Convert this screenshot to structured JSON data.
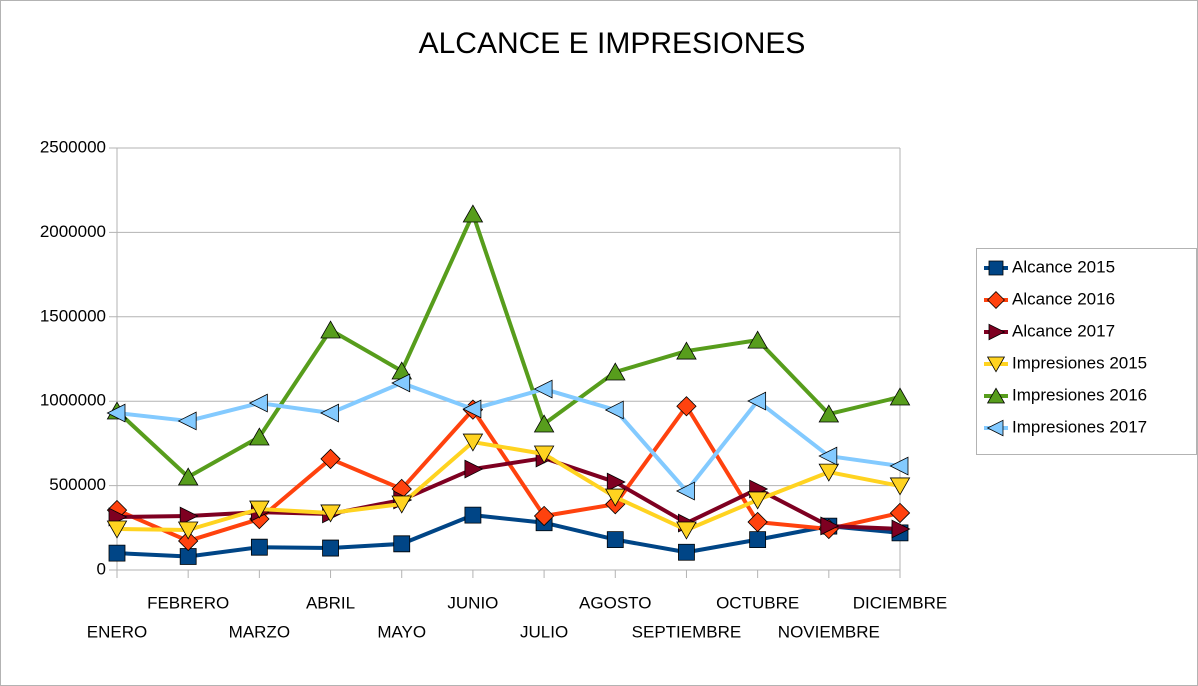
{
  "chart_data": {
    "type": "line",
    "title": "ALCANCE E IMPRESIONES",
    "categories": [
      "ENERO",
      "FEBRERO",
      "MARZO",
      "ABRIL",
      "MAYO",
      "JUNIO",
      "JULIO",
      "AGOSTO",
      "SEPTIEMBRE",
      "OCTUBRE",
      "NOVIEMBRE",
      "DICIEMBRE"
    ],
    "ylim": [
      0,
      2500000
    ],
    "yticks": [
      0,
      500000,
      1000000,
      1500000,
      2000000,
      2500000
    ],
    "grid": true,
    "legend": "right",
    "series": [
      {
        "name": "Alcance 2015",
        "color": "#004586",
        "marker": "square",
        "values": [
          100000,
          80000,
          135000,
          130000,
          155000,
          325000,
          280000,
          180000,
          105000,
          180000,
          260000,
          220000
        ]
      },
      {
        "name": "Alcance 2016",
        "color": "#ff420e",
        "marker": "diamond",
        "values": [
          355000,
          172000,
          302000,
          658000,
          480000,
          950000,
          320000,
          390000,
          970000,
          284000,
          243000,
          338000
        ]
      },
      {
        "name": "Alcance 2017",
        "color": "#7e0021",
        "marker": "triangle-right",
        "values": [
          314000,
          320000,
          343000,
          332000,
          415000,
          598000,
          663000,
          521000,
          278000,
          480000,
          261000,
          243000
        ]
      },
      {
        "name": "Impresiones 2015",
        "color": "#ffd320",
        "marker": "triangle-down",
        "values": [
          243000,
          237000,
          361000,
          338000,
          391000,
          758000,
          687000,
          432000,
          237000,
          415000,
          580000,
          498000
        ]
      },
      {
        "name": "Impresiones 2016",
        "color": "#579d1c",
        "marker": "triangle-up",
        "values": [
          942000,
          551000,
          788000,
          1422000,
          1179000,
          2109000,
          865000,
          1173000,
          1297000,
          1362000,
          924000,
          1025000
        ]
      },
      {
        "name": "Impresiones 2017",
        "color": "#83caff",
        "marker": "triangle-left",
        "values": [
          930000,
          883000,
          989000,
          930000,
          1108000,
          954000,
          1072000,
          948000,
          468000,
          1001000,
          675000,
          616000
        ]
      }
    ]
  }
}
